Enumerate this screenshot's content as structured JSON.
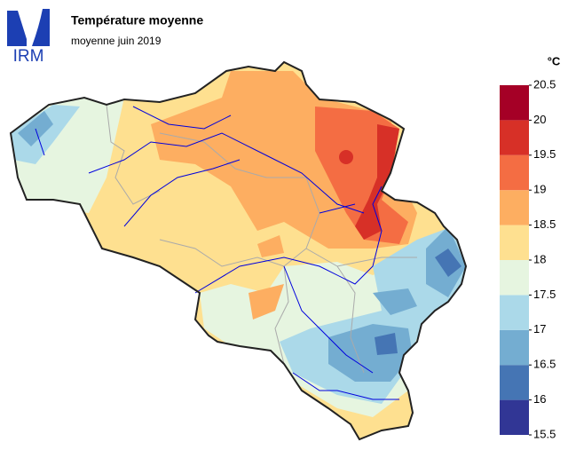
{
  "header": {
    "logo": "IRM",
    "title": "Température moyenne",
    "subtitle": "moyenne juin 2019"
  },
  "legend": {
    "unit": "°C",
    "ticks": [
      15.5,
      16,
      16.5,
      17,
      17.5,
      18,
      18.5,
      19,
      19.5,
      20,
      20.5
    ],
    "colors": [
      "#313695",
      "#4575b4",
      "#74add1",
      "#abd9e9",
      "#e6f5e0",
      "#fee090",
      "#fdae61",
      "#f46d43",
      "#d73027",
      "#a50026"
    ]
  }
}
